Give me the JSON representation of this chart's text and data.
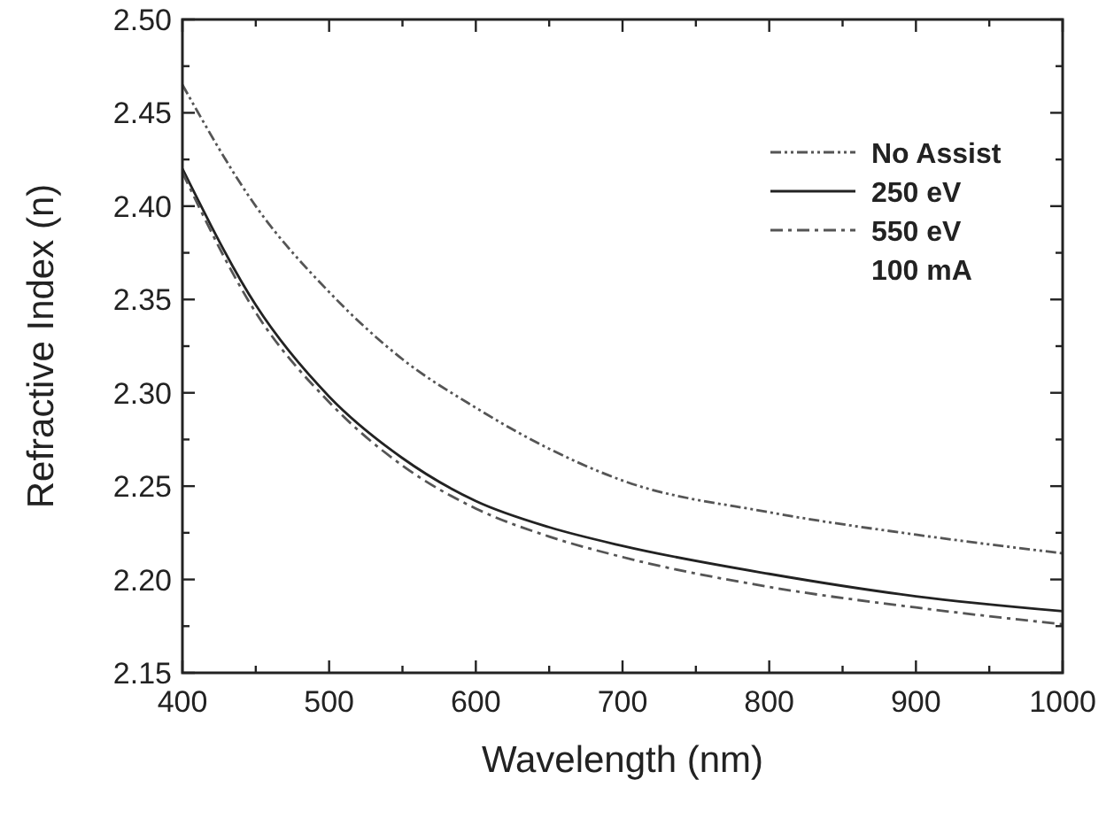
{
  "chart_data": {
    "type": "line",
    "xlabel": "Wavelength (nm)",
    "ylabel": "Refractive Index (n)",
    "x": [
      400,
      450,
      500,
      550,
      600,
      650,
      700,
      800,
      900,
      1000
    ],
    "series": [
      {
        "name": "No Assist",
        "color": "#555555",
        "line_style": "dashdotdot",
        "values": [
          2.465,
          2.4,
          2.354,
          2.318,
          2.292,
          2.27,
          2.253,
          2.236,
          2.224,
          2.214
        ]
      },
      {
        "name": "250 eV",
        "color": "#222222",
        "line_style": "solid",
        "values": [
          2.42,
          2.347,
          2.298,
          2.265,
          2.242,
          2.228,
          2.218,
          2.203,
          2.191,
          2.183
        ]
      },
      {
        "name": "550 eV",
        "color": "#555555",
        "line_style": "dashdot",
        "values": [
          2.418,
          2.343,
          2.295,
          2.261,
          2.238,
          2.223,
          2.212,
          2.196,
          2.185,
          2.176
        ]
      }
    ],
    "annotations": [
      "100 mA"
    ],
    "xlim": [
      400,
      1000
    ],
    "ylim": [
      2.15,
      2.5
    ],
    "xticks": [
      400,
      {
        "value": 450,
        "label": null
      },
      500,
      {
        "value": 550,
        "label": null
      },
      600,
      {
        "value": 650,
        "label": null
      },
      700,
      {
        "value": 750,
        "label": null
      },
      800,
      {
        "value": 850,
        "label": null
      },
      900,
      {
        "value": 950,
        "label": null
      },
      1000
    ],
    "yticks": [
      {
        "value": 2.15,
        "label": "2.15"
      },
      {
        "value": 2.175,
        "label": null
      },
      {
        "value": 2.2,
        "label": "2.20"
      },
      {
        "value": 2.225,
        "label": null
      },
      {
        "value": 2.25,
        "label": "2.25"
      },
      {
        "value": 2.275,
        "label": null
      },
      {
        "value": 2.3,
        "label": "2.30"
      },
      {
        "value": 2.325,
        "label": null
      },
      {
        "value": 2.35,
        "label": "2.35"
      },
      {
        "value": 2.375,
        "label": null
      },
      {
        "value": 2.4,
        "label": "2.40"
      },
      {
        "value": 2.425,
        "label": null
      },
      {
        "value": 2.45,
        "label": "2.45"
      },
      {
        "value": 2.475,
        "label": null
      },
      {
        "value": 2.5,
        "label": "2.50"
      }
    ],
    "legend": "top right",
    "grid": false
  }
}
